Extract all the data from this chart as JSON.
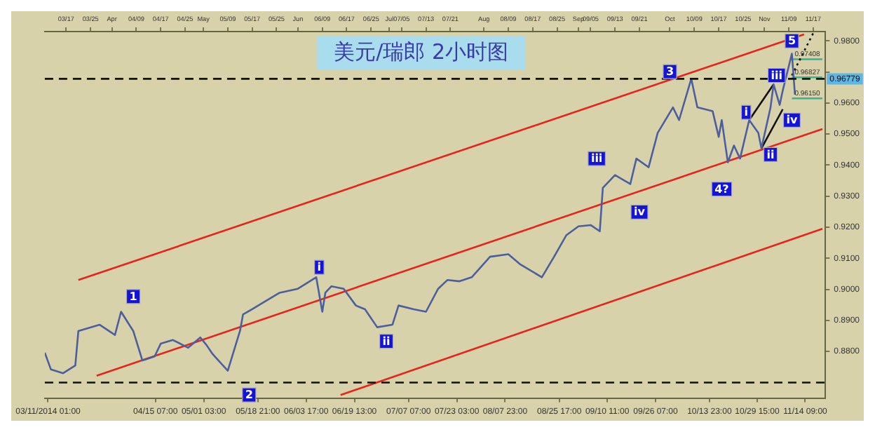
{
  "chart_data": {
    "type": "line",
    "title": "美元/瑞郎 2小时图",
    "xlim": [
      "2014-03-10",
      "2014-11-21"
    ],
    "ylim": [
      0.865,
      0.983
    ],
    "xticks": [
      {
        "value": "2014-03-11T01:00",
        "label": "03/11/2014 01:00"
      },
      {
        "value": "2014-04-15T07:00",
        "label": "04/15 07:00"
      },
      {
        "value": "2014-05-01T03:00",
        "label": "05/01 03:00"
      },
      {
        "value": "2014-05-18T21:00",
        "label": "05/18 21:00"
      },
      {
        "value": "2014-06-03T17:00",
        "label": "06/03 17:00"
      },
      {
        "value": "2014-06-19T13:00",
        "label": "06/19 13:00"
      },
      {
        "value": "2014-07-07T07:00",
        "label": "07/07 07:00"
      },
      {
        "value": "2014-07-23T03:00",
        "label": "07/23 03:00"
      },
      {
        "value": "2014-08-07T23:00",
        "label": "08/07 23:00"
      },
      {
        "value": "2014-08-25T17:00",
        "label": "08/25 17:00"
      },
      {
        "value": "2014-09-10T11:00",
        "label": "09/10 11:00"
      },
      {
        "value": "2014-09-26T07:00",
        "label": "09/26 07:00"
      },
      {
        "value": "2014-10-13T23:00",
        "label": "10/13 23:00"
      },
      {
        "value": "2014-10-29T15:00",
        "label": "10/29 15:00"
      },
      {
        "value": "2014-11-14T09:00",
        "label": "11/14 09:00"
      }
    ],
    "x2lim": [
      "2014-03-10",
      "2014-11-21"
    ],
    "x2ticks": [
      {
        "value": "2014-03-17",
        "label": "03/17"
      },
      {
        "value": "2014-03-25",
        "label": "03/25"
      },
      {
        "value": "2014-04-01",
        "label": "Apr"
      },
      {
        "value": "2014-04-09",
        "label": "04/09"
      },
      {
        "value": "2014-04-17",
        "label": "04/17"
      },
      {
        "value": "2014-04-25",
        "label": "04/25"
      },
      {
        "value": "2014-05-01",
        "label": "May"
      },
      {
        "value": "2014-05-09",
        "label": "05/09"
      },
      {
        "value": "2014-05-17",
        "label": "05/17"
      },
      {
        "value": "2014-05-25",
        "label": "05/25"
      },
      {
        "value": "2014-06-01",
        "label": "Jun"
      },
      {
        "value": "2014-06-09",
        "label": "06/09"
      },
      {
        "value": "2014-06-17",
        "label": "06/17"
      },
      {
        "value": "2014-06-25",
        "label": "06/25"
      },
      {
        "value": "2014-07-01",
        "label": "Jul"
      },
      {
        "value": "2014-07-05",
        "label": "07/05"
      },
      {
        "value": "2014-07-13",
        "label": "07/13"
      },
      {
        "value": "2014-07-21",
        "label": "07/21"
      },
      {
        "value": "2014-08-01",
        "label": "Aug"
      },
      {
        "value": "2014-08-09",
        "label": "08/09"
      },
      {
        "value": "2014-08-17",
        "label": "08/17"
      },
      {
        "value": "2014-08-25",
        "label": "08/25"
      },
      {
        "value": "2014-09-01",
        "label": "Sep"
      },
      {
        "value": "2014-09-05",
        "label": "09/05"
      },
      {
        "value": "2014-09-13",
        "label": "09/13"
      },
      {
        "value": "2014-09-21",
        "label": "09/21"
      },
      {
        "value": "2014-10-01",
        "label": "Oct"
      },
      {
        "value": "2014-10-09",
        "label": "10/09"
      },
      {
        "value": "2014-10-17",
        "label": "10/17"
      },
      {
        "value": "2014-10-25",
        "label": "10/25"
      },
      {
        "value": "2014-11-01",
        "label": "Nov"
      },
      {
        "value": "2014-11-09",
        "label": "11/09"
      },
      {
        "value": "2014-11-17",
        "label": "11/17"
      }
    ],
    "yticks": [
      {
        "value": 0.88,
        "label": "0.8800"
      },
      {
        "value": 0.89,
        "label": "0.8900"
      },
      {
        "value": 0.9,
        "label": "0.9000"
      },
      {
        "value": 0.91,
        "label": "0.9100"
      },
      {
        "value": 0.92,
        "label": "0.9200"
      },
      {
        "value": 0.93,
        "label": "0.9300"
      },
      {
        "value": 0.94,
        "label": "0.9400"
      },
      {
        "value": 0.95,
        "label": "0.9500"
      },
      {
        "value": 0.96,
        "label": "0.9600"
      },
      {
        "value": 0.97,
        "label": null
      },
      {
        "value": 0.98,
        "label": "0.9800"
      }
    ],
    "grid": false,
    "legend": false,
    "marker": "none",
    "series": [
      {
        "color": "#4b5f9e",
        "x": [
          "2014-03-10",
          "2014-03-12",
          "2014-03-16",
          "2014-03-20",
          "2014-03-21",
          "2014-03-28",
          "2014-04-02",
          "2014-04-04",
          "2014-04-08",
          "2014-04-11",
          "2014-04-15",
          "2014-04-17",
          "2014-04-21",
          "2014-04-26",
          "2014-04-30",
          "2014-05-02",
          "2014-05-04",
          "2014-05-09",
          "2014-05-13",
          "2014-05-14",
          "2014-05-17",
          "2014-05-21",
          "2014-05-26",
          "2014-06-01",
          "2014-06-07",
          "2014-06-09",
          "2014-06-10",
          "2014-06-12",
          "2014-06-16",
          "2014-06-20",
          "2014-06-23",
          "2014-06-27",
          "2014-07-02",
          "2014-07-04",
          "2014-07-09",
          "2014-07-13",
          "2014-07-17",
          "2014-07-20",
          "2014-07-24",
          "2014-07-28",
          "2014-08-03",
          "2014-08-09",
          "2014-08-13",
          "2014-08-20",
          "2014-08-24",
          "2014-08-28",
          "2014-09-01",
          "2014-09-05",
          "2014-09-08",
          "2014-09-09",
          "2014-09-13",
          "2014-09-18",
          "2014-09-20",
          "2014-09-24",
          "2014-09-27",
          "2014-10-02",
          "2014-10-04",
          "2014-10-08",
          "2014-10-10",
          "2014-10-15",
          "2014-10-17",
          "2014-10-18",
          "2014-10-20",
          "2014-10-22",
          "2014-10-24",
          "2014-10-27",
          "2014-10-30",
          "2014-10-31",
          "2014-11-03",
          "2014-11-04",
          "2014-11-06",
          "2014-11-07",
          "2014-11-10",
          "2014-11-11"
        ],
        "values": [
          0.8796,
          0.8742,
          0.873,
          0.8755,
          0.8866,
          0.8886,
          0.8853,
          0.8928,
          0.8866,
          0.8771,
          0.8784,
          0.8825,
          0.8837,
          0.8812,
          0.8845,
          0.8821,
          0.8792,
          0.8738,
          0.8866,
          0.8919,
          0.8936,
          0.896,
          0.8989,
          0.9002,
          0.9039,
          0.8928,
          0.8989,
          0.901,
          0.9002,
          0.8948,
          0.8936,
          0.8878,
          0.8886,
          0.8948,
          0.8936,
          0.8928,
          0.9002,
          0.903,
          0.9026,
          0.9039,
          0.9105,
          0.9113,
          0.908,
          0.9039,
          0.9105,
          0.9174,
          0.9203,
          0.9207,
          0.9187,
          0.9327,
          0.9368,
          0.9339,
          0.9421,
          0.9393,
          0.9504,
          0.9586,
          0.9545,
          0.9678,
          0.9586,
          0.9574,
          0.9491,
          0.9545,
          0.9409,
          0.9463,
          0.9421,
          0.9545,
          0.9504,
          0.9454,
          0.9586,
          0.966,
          0.9594,
          0.964,
          0.9759,
          0.9627
        ]
      },
      {
        "type": "line",
        "color": "#e8231a",
        "x": [
          "2014-03-21",
          "2014-11-14"
        ],
        "values": [
          0.903,
          0.9821
        ]
      },
      {
        "type": "line",
        "color": "#e8231a",
        "x": [
          "2014-03-27",
          "2014-11-20"
        ],
        "values": [
          0.8722,
          0.9516
        ]
      },
      {
        "type": "line",
        "color": "#e8231a",
        "x": [
          "2014-06-15",
          "2014-11-20"
        ],
        "values": [
          0.866,
          0.9195
        ]
      },
      {
        "type": "line",
        "color": "#111111",
        "x": [
          "2014-10-27",
          "2014-11-04"
        ],
        "values": [
          0.9545,
          0.966
        ]
      },
      {
        "color": "#111111",
        "x": [
          "2014-10-31",
          "2014-11-07"
        ],
        "values": [
          0.9454,
          0.958
        ]
      },
      {
        "type": "line",
        "color": "#111111",
        "line_style": "dotted",
        "x": [
          "2014-11-10",
          "2014-11-17"
        ],
        "values": [
          0.9689,
          0.9825
        ]
      },
      {
        "type": "line",
        "color": "#35b49a",
        "x": [
          "2014-11-10",
          "2014-11-20"
        ],
        "values": [
          0.97408,
          0.97408
        ],
        "value_labels": [
          "0.97408",
          null
        ]
      },
      {
        "type": "line",
        "color": "#35b49a",
        "x": [
          "2014-11-10",
          "2014-11-20"
        ],
        "values": [
          0.96827,
          0.96827
        ],
        "value_labels": [
          "0.96827",
          null
        ]
      },
      {
        "type": "line",
        "color": "#35b49a",
        "x": [
          "2014-11-10",
          "2014-11-20"
        ],
        "values": [
          0.9615,
          0.9615
        ],
        "value_labels": [
          "0.96150",
          null
        ]
      }
    ],
    "ref_lines": [
      {
        "axis": "y",
        "value": 0.96779,
        "label": "0.96779",
        "color": "#111111",
        "line_style": "dashed"
      },
      {
        "axis": "y",
        "value": 0.87,
        "color": "#111111",
        "line_style": "dashed"
      }
    ],
    "annotations": [
      {
        "text": "1",
        "x": "2014-04-08",
        "y": 0.8977
      },
      {
        "text": "2",
        "x": "2014-05-16",
        "y": 0.866
      },
      {
        "text": "i",
        "x": "2014-06-08",
        "y": 0.9071
      },
      {
        "text": "ii",
        "x": "2014-06-30",
        "y": 0.8833
      },
      {
        "text": "iii",
        "x": "2014-09-07",
        "y": 0.9421
      },
      {
        "text": "iv",
        "x": "2014-09-21",
        "y": 0.9249
      },
      {
        "text": "3",
        "x": "2014-10-01",
        "y": 0.9701
      },
      {
        "text": "4?",
        "x": "2014-10-18",
        "y": 0.9323
      },
      {
        "text": "i",
        "x": "2014-10-26",
        "y": 0.957
      },
      {
        "text": "ii",
        "x": "2014-11-03",
        "y": 0.9434
      },
      {
        "text": "iii",
        "x": "2014-11-05",
        "y": 0.9689
      },
      {
        "text": "iv",
        "x": "2014-11-10",
        "y": 0.9545
      },
      {
        "text": "5",
        "x": "2014-11-10",
        "y": 0.98
      }
    ]
  }
}
